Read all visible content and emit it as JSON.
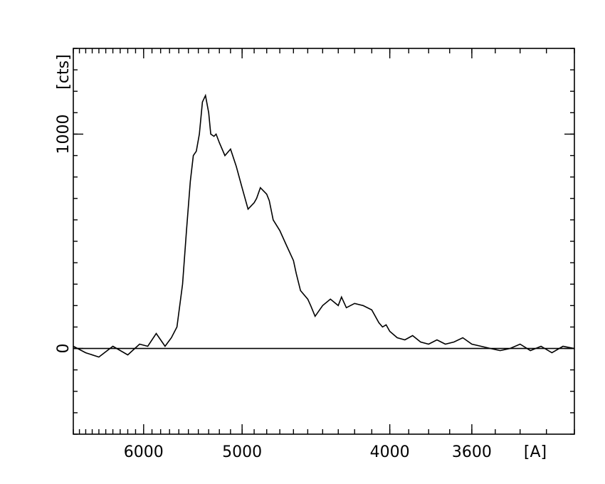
{
  "chart_data": {
    "type": "line",
    "title": "",
    "xlabel": "[A]",
    "ylabel": "[cts]",
    "x_scale": "reciprocal",
    "xlim": [
      7000,
      3200
    ],
    "ylim": [
      -400,
      1400
    ],
    "grid": false,
    "legend": "none",
    "x_ticks": [
      {
        "value": 6000,
        "label": "6000"
      },
      {
        "value": 5000,
        "label": "5000"
      },
      {
        "value": 4000,
        "label": "4000"
      },
      {
        "value": 3600,
        "label": "3600"
      }
    ],
    "y_ticks": [
      {
        "value": 0,
        "label": "0"
      },
      {
        "value": 1000,
        "label": "1000"
      }
    ],
    "baseline": 0,
    "series": [
      {
        "name": "",
        "x": [
          7000,
          6800,
          6600,
          6400,
          6200,
          6050,
          5950,
          5850,
          5750,
          5680,
          5620,
          5560,
          5520,
          5480,
          5450,
          5420,
          5390,
          5360,
          5330,
          5300,
          5280,
          5250,
          5230,
          5200,
          5150,
          5100,
          5050,
          5000,
          4950,
          4900,
          4880,
          4850,
          4800,
          4780,
          4750,
          4700,
          4650,
          4600,
          4580,
          4550,
          4500,
          4480,
          4450,
          4400,
          4350,
          4300,
          4280,
          4250,
          4200,
          4150,
          4100,
          4060,
          4040,
          4020,
          4000,
          3960,
          3920,
          3880,
          3840,
          3800,
          3760,
          3720,
          3680,
          3640,
          3600,
          3560,
          3520,
          3480,
          3440,
          3400,
          3360,
          3320,
          3280,
          3240,
          3200
        ],
        "y": [
          10,
          -20,
          -40,
          10,
          -30,
          20,
          10,
          70,
          10,
          50,
          100,
          300,
          550,
          780,
          900,
          920,
          1000,
          1150,
          1180,
          1100,
          1000,
          990,
          1000,
          960,
          900,
          930,
          850,
          750,
          650,
          680,
          700,
          750,
          720,
          690,
          600,
          550,
          480,
          410,
          350,
          270,
          230,
          200,
          150,
          200,
          230,
          200,
          240,
          190,
          210,
          200,
          180,
          120,
          100,
          110,
          80,
          50,
          40,
          60,
          30,
          20,
          40,
          20,
          30,
          50,
          20,
          10,
          0,
          -10,
          0,
          20,
          -10,
          10,
          -20,
          10,
          0
        ]
      }
    ]
  },
  "colors": {
    "line": "#000000",
    "axes": "#000000",
    "background": "#ffffff"
  }
}
